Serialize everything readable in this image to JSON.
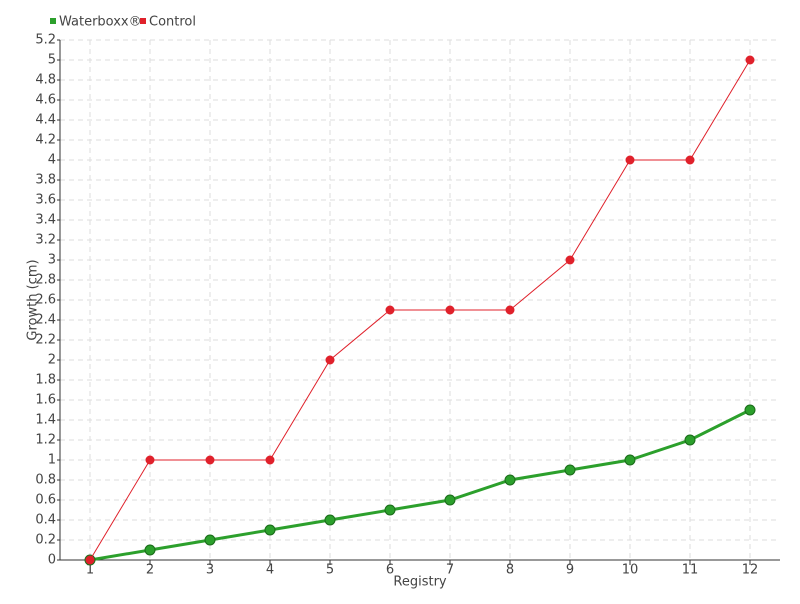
{
  "chart_data": {
    "type": "line",
    "x_label": "Registry",
    "y_label": "Growth (cm)",
    "categories": [
      "1",
      "2",
      "3",
      "4",
      "5",
      "6",
      "7",
      "8",
      "9",
      "10",
      "11",
      "12"
    ],
    "series": [
      {
        "name": "Waterboxx®",
        "color": "#2ca02c",
        "values": [
          0,
          0.1,
          0.2,
          0.3,
          0.4,
          0.5,
          0.6,
          0.8,
          0.9,
          1.0,
          1.2,
          1.5
        ]
      },
      {
        "name": "Control",
        "color": "#e0212b",
        "values": [
          0,
          1,
          1,
          1,
          2,
          2.5,
          2.5,
          2.5,
          3,
          4,
          4,
          5
        ]
      }
    ],
    "ylim": [
      0,
      5.2
    ],
    "yticks": [
      0,
      0.2,
      0.4,
      0.6,
      0.8,
      1,
      1.2,
      1.4,
      1.6,
      1.8,
      2,
      2.2,
      2.4,
      2.6,
      2.8,
      3,
      3.2,
      3.4,
      3.6,
      3.8,
      4,
      4.2,
      4.4,
      4.6,
      4.8,
      5,
      5.2
    ],
    "grid": true,
    "legend": "top-left"
  }
}
